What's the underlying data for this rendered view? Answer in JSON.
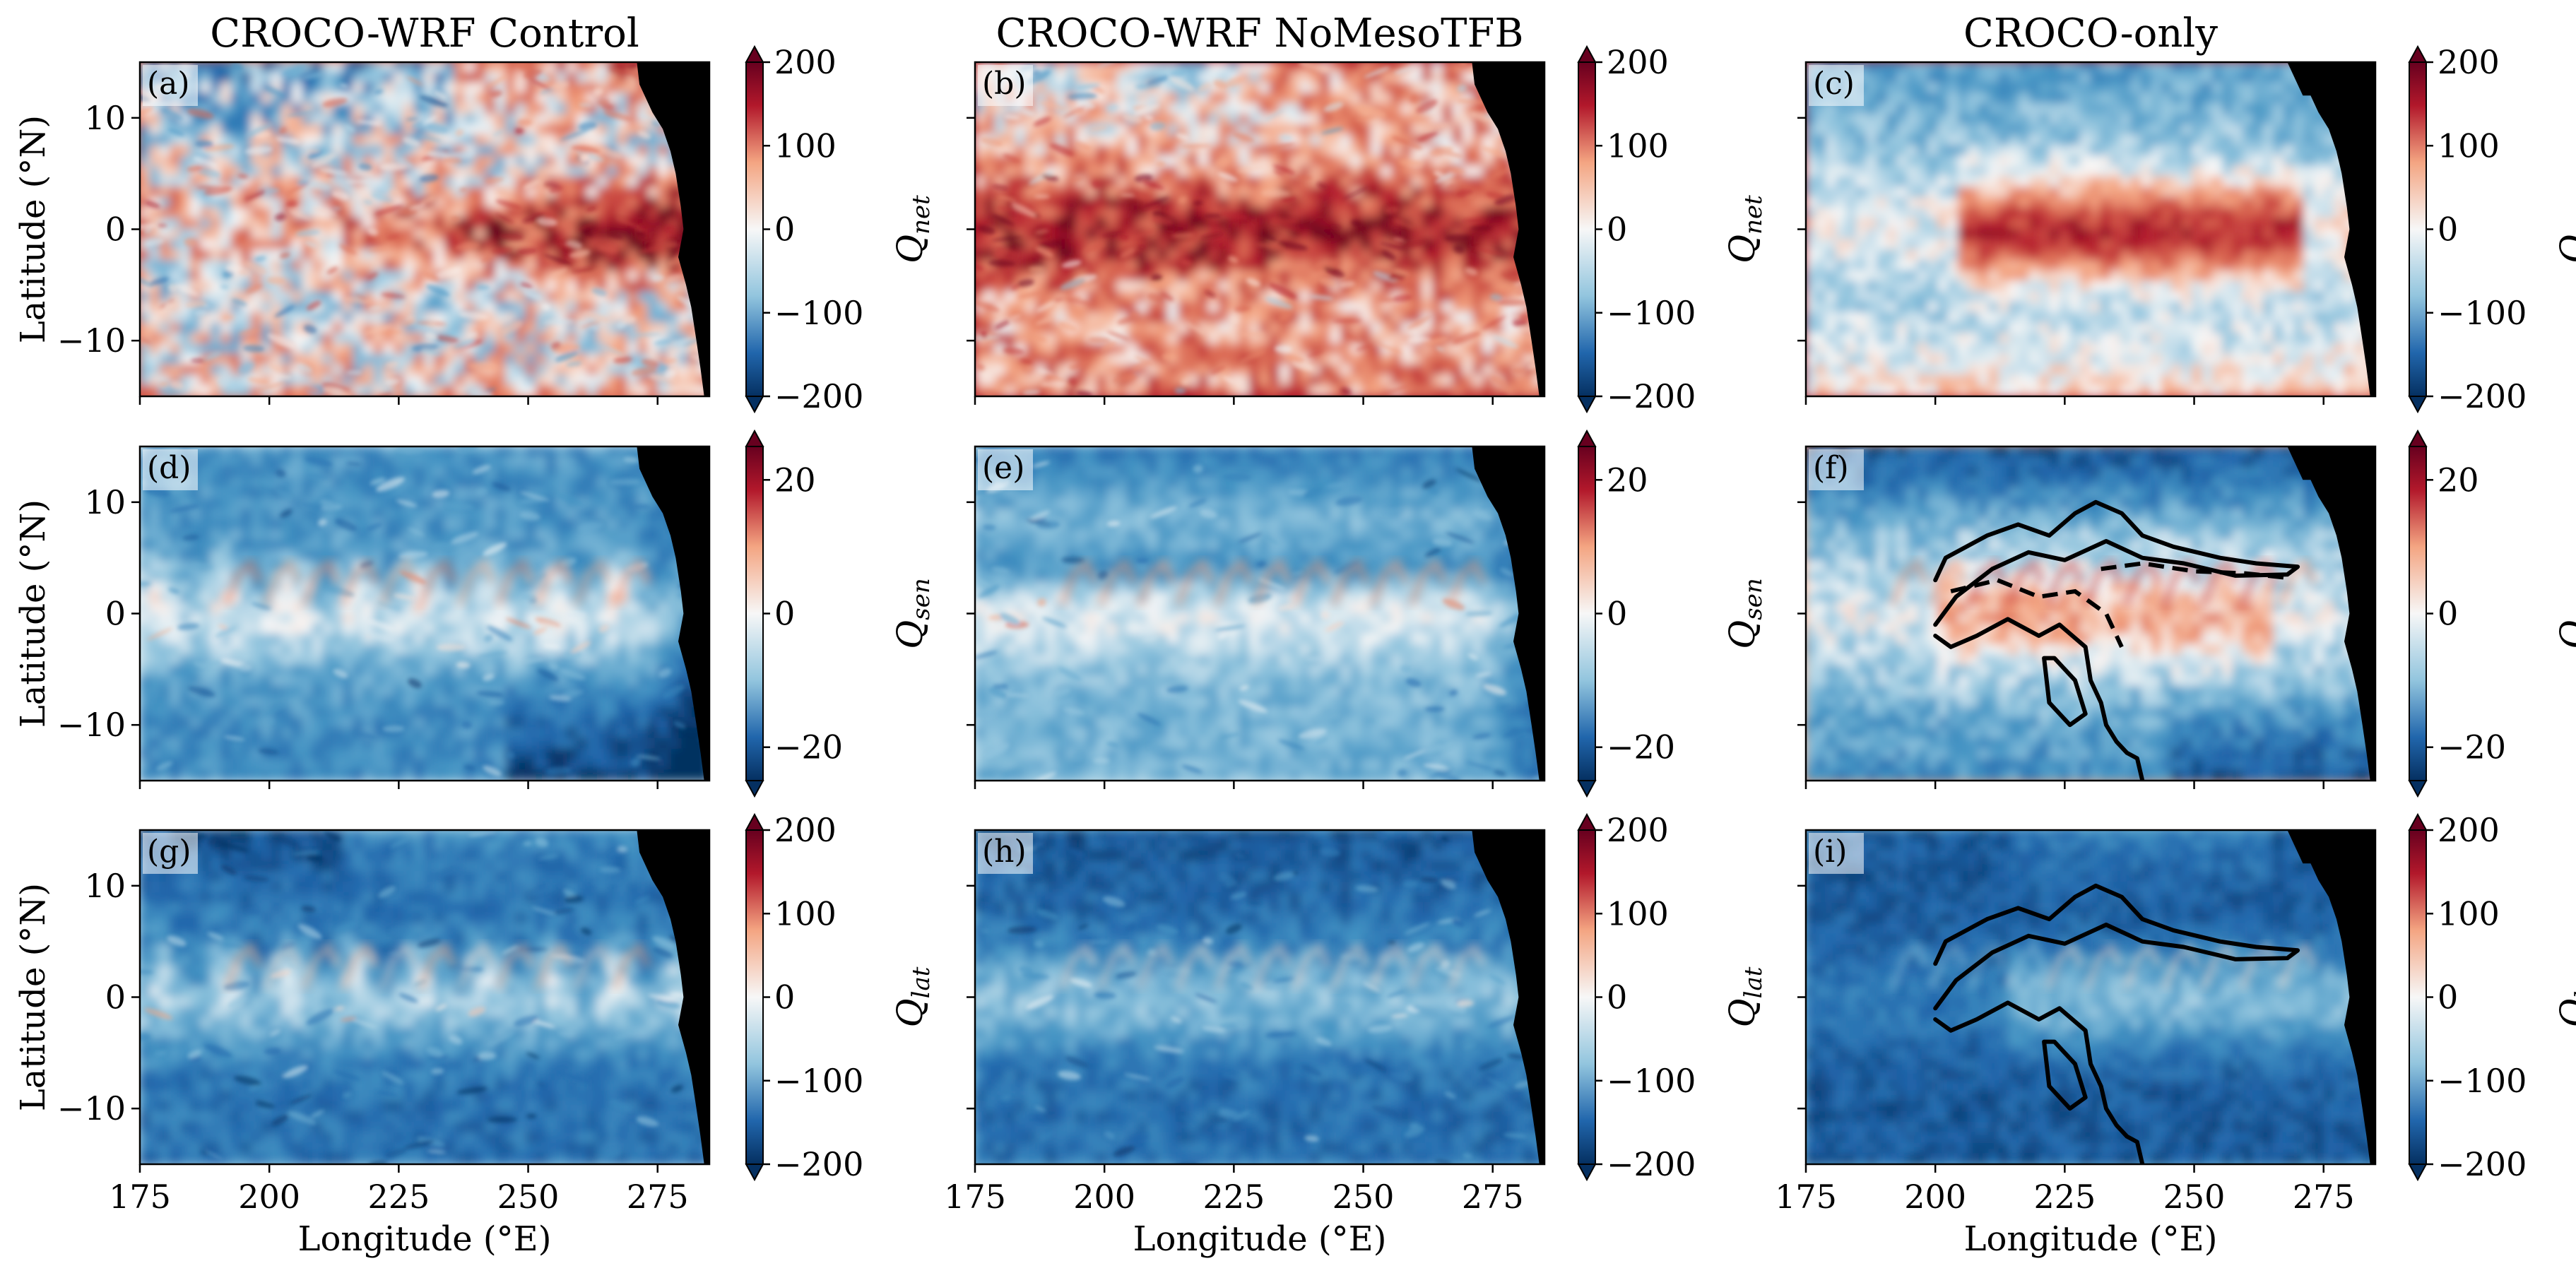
{
  "figure": {
    "column_titles": [
      "CROCO-WRF Control",
      "CROCO-WRF NoMesoTFB",
      "CROCO-only"
    ],
    "ylabel": "Latitude (°N)",
    "xlabel": "Longitude (°E)",
    "panel_letters": [
      "(a)",
      "(b)",
      "(c)",
      "(d)",
      "(e)",
      "(f)",
      "(g)",
      "(h)",
      "(i)"
    ],
    "colormap": {
      "name": "RdBu_r",
      "low": "#053061",
      "mid": "#f7f7f7",
      "high": "#67001f",
      "land": "#000000"
    }
  },
  "chart_data": {
    "type": "heatmap",
    "x_ticks": [
      175,
      200,
      225,
      250,
      275
    ],
    "y_ticks": [
      10,
      0,
      -10
    ],
    "xlim": [
      175,
      285
    ],
    "ylim": [
      -15,
      15
    ],
    "rows": [
      {
        "variable_label": "Q_net",
        "var_main": "Q",
        "var_sub": "net",
        "vmin": -200,
        "vmax": 200,
        "cbar_ticks": [
          200,
          100,
          0,
          -100,
          -200
        ],
        "cbar_tick_labels": [
          "200",
          "100",
          "0",
          "−100",
          "−200"
        ],
        "panels": [
          "(a)",
          "(b)",
          "(c)"
        ]
      },
      {
        "variable_label": "Q_sen",
        "var_main": "Q",
        "var_sub": "sen",
        "vmin": -25,
        "vmax": 25,
        "cbar_ticks": [
          20,
          0,
          -20
        ],
        "cbar_tick_labels": [
          "20",
          "0",
          "−20"
        ],
        "panels": [
          "(d)",
          "(e)",
          "(f)"
        ]
      },
      {
        "variable_label": "Q_lat",
        "var_main": "Q",
        "var_sub": "lat",
        "vmin": -200,
        "vmax": 200,
        "cbar_ticks": [
          200,
          100,
          0,
          -100,
          -200
        ],
        "cbar_tick_labels": [
          "200",
          "100",
          "0",
          "−100",
          "−200"
        ],
        "panels": [
          "(g)",
          "(h)",
          "(i)"
        ]
      }
    ]
  }
}
